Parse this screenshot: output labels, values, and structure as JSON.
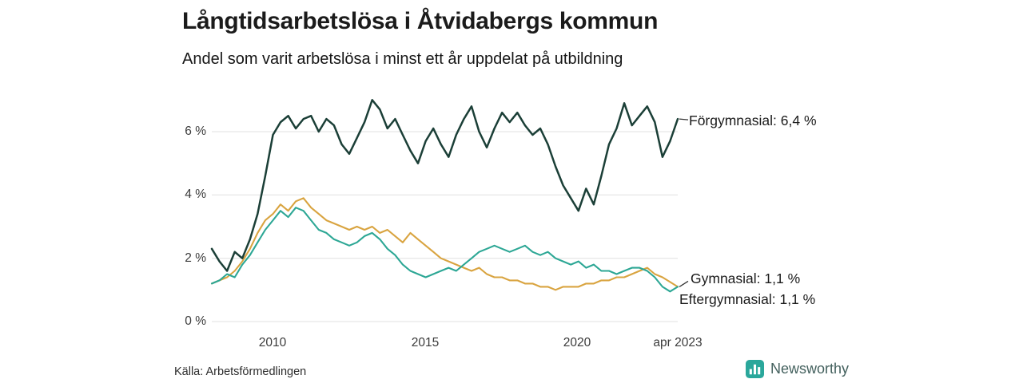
{
  "chart_data": {
    "type": "line",
    "title": "Långtidsarbetslösa i Åtvidabergs kommun",
    "subtitle": "Andel som varit arbetslösa i minst ett år uppdelat på utbildning",
    "xlabel": "",
    "ylabel": "",
    "grid": "horizontal",
    "legend": "end-of-line-labels",
    "ylim": [
      0,
      7.2
    ],
    "y_ticks_top_to_bottom": [
      6,
      4,
      2,
      0
    ],
    "y_tick_labels_top_to_bottom": [
      "6 %",
      "4 %",
      "2 %",
      "0 %"
    ],
    "x_ticks": [
      2010,
      2015,
      2020,
      2023.25
    ],
    "x_tick_labels": [
      "2010",
      "2015",
      "2020",
      "apr 2023"
    ],
    "x_unit": "year (quarterly, decimal)",
    "x": [
      2008,
      2008.25,
      2008.5,
      2008.75,
      2009,
      2009.25,
      2009.5,
      2009.75,
      2010,
      2010.25,
      2010.5,
      2010.75,
      2011,
      2011.25,
      2011.5,
      2011.75,
      2012,
      2012.25,
      2012.5,
      2012.75,
      2013,
      2013.25,
      2013.5,
      2013.75,
      2014,
      2014.25,
      2014.5,
      2014.75,
      2015,
      2015.25,
      2015.5,
      2015.75,
      2016,
      2016.25,
      2016.5,
      2016.75,
      2017,
      2017.25,
      2017.5,
      2017.75,
      2018,
      2018.25,
      2018.5,
      2018.75,
      2019,
      2019.25,
      2019.5,
      2019.75,
      2020,
      2020.25,
      2020.5,
      2020.75,
      2021,
      2021.25,
      2021.5,
      2021.75,
      2022,
      2022.25,
      2022.5,
      2022.75,
      2023,
      2023.25
    ],
    "series": [
      {
        "name": "Förgymnasial",
        "end_label": "Förgymnasial: 6,4 %",
        "end_value_pct": 6.4,
        "color": "#1b3f37",
        "values": [
          2.3,
          1.9,
          1.6,
          2.2,
          2.0,
          2.6,
          3.4,
          4.6,
          5.9,
          6.3,
          6.5,
          6.1,
          6.4,
          6.5,
          6.0,
          6.4,
          6.2,
          5.6,
          5.3,
          5.8,
          6.3,
          7.0,
          6.7,
          6.1,
          6.4,
          5.9,
          5.4,
          5.0,
          5.7,
          6.1,
          5.6,
          5.2,
          5.9,
          6.4,
          6.8,
          6.0,
          5.5,
          6.1,
          6.6,
          6.3,
          6.6,
          6.2,
          5.9,
          6.1,
          5.6,
          4.9,
          4.3,
          3.9,
          3.5,
          4.2,
          3.7,
          4.6,
          5.6,
          6.1,
          6.9,
          6.2,
          6.5,
          6.8,
          6.3,
          5.2,
          5.7,
          6.4
        ]
      },
      {
        "name": "Gymnasial",
        "end_label": "Gymnasial: 1,1 %",
        "end_value_pct": 1.1,
        "color": "#2da795",
        "values": [
          1.2,
          1.3,
          1.5,
          1.4,
          1.8,
          2.1,
          2.5,
          2.9,
          3.2,
          3.5,
          3.3,
          3.6,
          3.5,
          3.2,
          2.9,
          2.8,
          2.6,
          2.5,
          2.4,
          2.5,
          2.7,
          2.8,
          2.6,
          2.3,
          2.1,
          1.8,
          1.6,
          1.5,
          1.4,
          1.5,
          1.6,
          1.7,
          1.6,
          1.8,
          2.0,
          2.2,
          2.3,
          2.4,
          2.3,
          2.2,
          2.3,
          2.4,
          2.2,
          2.1,
          2.2,
          2.0,
          1.9,
          1.8,
          1.9,
          1.7,
          1.8,
          1.6,
          1.6,
          1.5,
          1.6,
          1.7,
          1.7,
          1.6,
          1.4,
          1.1,
          0.95,
          1.1
        ]
      },
      {
        "name": "Eftergymnasial",
        "end_label": "Eftergymnasial: 1,1 %",
        "end_value_pct": 1.1,
        "color": "#d9a440",
        "values": [
          1.2,
          1.3,
          1.4,
          1.6,
          1.9,
          2.3,
          2.8,
          3.2,
          3.4,
          3.7,
          3.5,
          3.8,
          3.9,
          3.6,
          3.4,
          3.2,
          3.1,
          3.0,
          2.9,
          3.0,
          2.9,
          3.0,
          2.8,
          2.9,
          2.7,
          2.5,
          2.8,
          2.6,
          2.4,
          2.2,
          2.0,
          1.9,
          1.8,
          1.7,
          1.6,
          1.7,
          1.5,
          1.4,
          1.4,
          1.3,
          1.3,
          1.2,
          1.2,
          1.1,
          1.1,
          1.0,
          1.1,
          1.1,
          1.1,
          1.2,
          1.2,
          1.3,
          1.3,
          1.4,
          1.4,
          1.5,
          1.6,
          1.7,
          1.5,
          1.4,
          1.25,
          1.1
        ]
      }
    ],
    "colors": {
      "grid": "#e0e0e0",
      "text": "#1b1b1b",
      "tick_text": "#3a3a3a"
    }
  },
  "footer": {
    "source": "Källa: Arbetsförmedlingen",
    "brand": "Newsworthy",
    "brand_color": "#2aa79b"
  }
}
